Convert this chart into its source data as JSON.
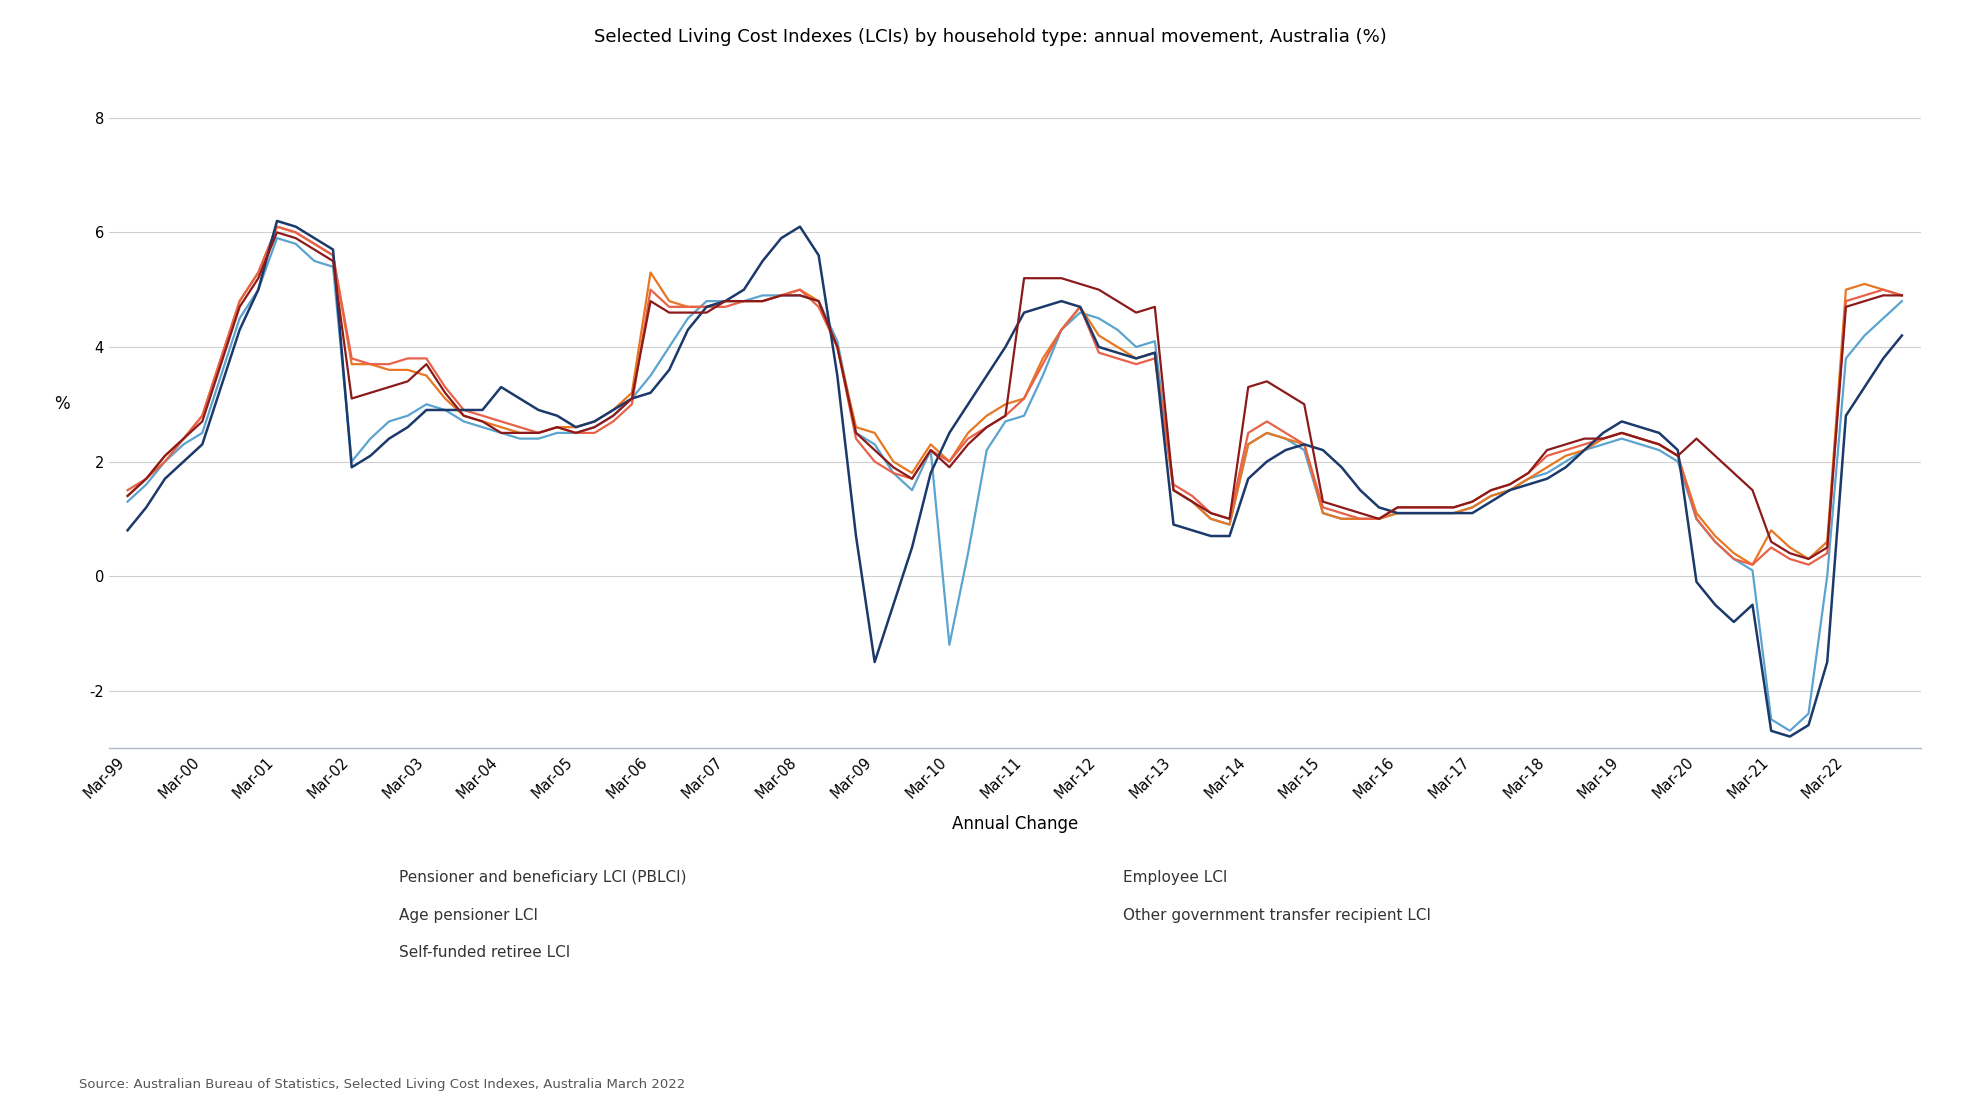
{
  "title": "Selected Living Cost Indexes (LCIs) by household type: annual movement, Australia (%)",
  "xlabel": "Annual Change",
  "ylabel": "%",
  "source": "Source: Australian Bureau of Statistics, Selected Living Cost Indexes, Australia March 2022",
  "ylim": [
    -3,
    9
  ],
  "yticks": [
    -2,
    0,
    2,
    4,
    6,
    8
  ],
  "x_labels": [
    "Mar-99",
    "Mar-00",
    "Mar-01",
    "Mar-02",
    "Mar-03",
    "Mar-04",
    "Mar-05",
    "Mar-06",
    "Mar-07",
    "Mar-08",
    "Mar-09",
    "Mar-10",
    "Mar-11",
    "Mar-12",
    "Mar-13",
    "Mar-14",
    "Mar-15",
    "Mar-16",
    "Mar-17",
    "Mar-18",
    "Mar-19",
    "Mar-20",
    "Mar-21",
    "Mar-22"
  ],
  "x_tick_indices": [
    0,
    4,
    8,
    12,
    16,
    20,
    24,
    28,
    32,
    36,
    40,
    44,
    48,
    52,
    56,
    60,
    64,
    68,
    72,
    76,
    80,
    84,
    88,
    92
  ],
  "series": [
    {
      "name": "Pensioner and beneficiary LCI (PBLCI)",
      "color": "#5BA4CF",
      "linewidth": 1.6,
      "values": [
        1.3,
        1.6,
        2.0,
        2.3,
        2.5,
        3.5,
        4.5,
        5.0,
        5.9,
        5.8,
        5.5,
        5.4,
        2.0,
        2.4,
        2.7,
        2.8,
        3.0,
        2.9,
        2.7,
        2.6,
        2.5,
        2.4,
        2.4,
        2.5,
        2.5,
        2.6,
        2.8,
        3.1,
        3.5,
        4.0,
        4.5,
        4.8,
        4.8,
        4.8,
        4.9,
        4.9,
        4.9,
        4.8,
        4.1,
        2.5,
        2.3,
        1.8,
        1.5,
        2.2,
        -1.2,
        0.4,
        2.2,
        2.7,
        2.8,
        3.5,
        4.3,
        4.6,
        4.5,
        4.3,
        4.0,
        4.1,
        1.5,
        1.3,
        1.0,
        0.9,
        2.3,
        2.5,
        2.4,
        2.2,
        1.1,
        1.0,
        1.0,
        1.0,
        1.1,
        1.1,
        1.1,
        1.1,
        1.2,
        1.4,
        1.5,
        1.7,
        1.8,
        2.0,
        2.2,
        2.3,
        2.4,
        2.3,
        2.2,
        2.0,
        1.0,
        0.6,
        0.3,
        0.1,
        -2.5,
        -2.7,
        -2.4,
        0.0,
        3.8,
        4.2,
        4.5,
        4.8
      ]
    },
    {
      "name": "Age pensioner LCI",
      "color": "#E87722",
      "linewidth": 1.6,
      "values": [
        1.4,
        1.7,
        2.1,
        2.4,
        2.8,
        3.8,
        4.8,
        5.3,
        6.1,
        6.0,
        5.8,
        5.6,
        3.7,
        3.7,
        3.6,
        3.6,
        3.5,
        3.1,
        2.8,
        2.7,
        2.6,
        2.5,
        2.5,
        2.6,
        2.6,
        2.7,
        2.9,
        3.2,
        5.3,
        4.8,
        4.7,
        4.7,
        4.8,
        4.8,
        4.8,
        4.9,
        5.0,
        4.8,
        4.0,
        2.6,
        2.5,
        2.0,
        1.8,
        2.3,
        2.0,
        2.5,
        2.8,
        3.0,
        3.1,
        3.8,
        4.3,
        4.7,
        4.2,
        4.0,
        3.8,
        3.9,
        1.5,
        1.3,
        1.0,
        0.9,
        2.3,
        2.5,
        2.4,
        2.3,
        1.1,
        1.0,
        1.0,
        1.0,
        1.1,
        1.1,
        1.1,
        1.1,
        1.2,
        1.4,
        1.5,
        1.7,
        1.9,
        2.1,
        2.2,
        2.4,
        2.5,
        2.4,
        2.3,
        2.1,
        1.1,
        0.7,
        0.4,
        0.2,
        0.8,
        0.5,
        0.3,
        0.6,
        5.0,
        5.1,
        5.0,
        4.9
      ]
    },
    {
      "name": "Self-funded retiree LCI",
      "color": "#E8624A",
      "linewidth": 1.6,
      "values": [
        1.5,
        1.7,
        2.0,
        2.4,
        2.8,
        3.8,
        4.8,
        5.3,
        6.1,
        6.0,
        5.8,
        5.6,
        3.8,
        3.7,
        3.7,
        3.8,
        3.8,
        3.3,
        2.9,
        2.8,
        2.7,
        2.6,
        2.5,
        2.6,
        2.5,
        2.5,
        2.7,
        3.0,
        5.0,
        4.7,
        4.7,
        4.7,
        4.7,
        4.8,
        4.8,
        4.9,
        5.0,
        4.7,
        4.0,
        2.4,
        2.0,
        1.8,
        1.7,
        2.2,
        2.0,
        2.4,
        2.6,
        2.8,
        3.1,
        3.7,
        4.3,
        4.7,
        3.9,
        3.8,
        3.7,
        3.8,
        1.6,
        1.4,
        1.1,
        1.0,
        2.5,
        2.7,
        2.5,
        2.3,
        1.2,
        1.1,
        1.0,
        1.0,
        1.2,
        1.2,
        1.2,
        1.2,
        1.3,
        1.5,
        1.6,
        1.8,
        2.1,
        2.2,
        2.3,
        2.4,
        2.5,
        2.4,
        2.3,
        2.1,
        1.0,
        0.6,
        0.3,
        0.2,
        0.5,
        0.3,
        0.2,
        0.4,
        4.8,
        4.9,
        5.0,
        4.9
      ]
    },
    {
      "name": "Employee LCI",
      "color": "#1B3A6B",
      "linewidth": 1.8,
      "values": [
        0.8,
        1.2,
        1.7,
        2.0,
        2.3,
        3.3,
        4.3,
        5.0,
        6.2,
        6.1,
        5.9,
        5.7,
        1.9,
        2.1,
        2.4,
        2.6,
        2.9,
        2.9,
        2.9,
        2.9,
        3.3,
        3.1,
        2.9,
        2.8,
        2.6,
        2.7,
        2.9,
        3.1,
        3.2,
        3.6,
        4.3,
        4.7,
        4.8,
        5.0,
        5.5,
        5.9,
        6.1,
        5.6,
        3.5,
        0.7,
        -1.5,
        -0.5,
        0.5,
        1.8,
        2.5,
        3.0,
        3.5,
        4.0,
        4.6,
        4.7,
        4.8,
        4.7,
        4.0,
        3.9,
        3.8,
        3.9,
        0.9,
        0.8,
        0.7,
        0.7,
        1.7,
        2.0,
        2.2,
        2.3,
        2.2,
        1.9,
        1.5,
        1.2,
        1.1,
        1.1,
        1.1,
        1.1,
        1.1,
        1.3,
        1.5,
        1.6,
        1.7,
        1.9,
        2.2,
        2.5,
        2.7,
        2.6,
        2.5,
        2.2,
        -0.1,
        -0.5,
        -0.8,
        -0.5,
        -2.7,
        -2.8,
        -2.6,
        -1.5,
        2.8,
        3.3,
        3.8,
        4.2
      ]
    },
    {
      "name": "Other government transfer recipient LCI",
      "color": "#8B1A1A",
      "linewidth": 1.6,
      "values": [
        1.4,
        1.7,
        2.1,
        2.4,
        2.7,
        3.7,
        4.7,
        5.2,
        6.0,
        5.9,
        5.7,
        5.5,
        3.1,
        3.2,
        3.3,
        3.4,
        3.7,
        3.2,
        2.8,
        2.7,
        2.5,
        2.5,
        2.5,
        2.6,
        2.5,
        2.6,
        2.8,
        3.1,
        4.8,
        4.6,
        4.6,
        4.6,
        4.8,
        4.8,
        4.8,
        4.9,
        4.9,
        4.8,
        4.0,
        2.5,
        2.2,
        1.9,
        1.7,
        2.2,
        1.9,
        2.3,
        2.6,
        2.8,
        5.2,
        5.2,
        5.2,
        5.1,
        5.0,
        4.8,
        4.6,
        4.7,
        1.5,
        1.3,
        1.1,
        1.0,
        3.3,
        3.4,
        3.2,
        3.0,
        1.3,
        1.2,
        1.1,
        1.0,
        1.2,
        1.2,
        1.2,
        1.2,
        1.3,
        1.5,
        1.6,
        1.8,
        2.2,
        2.3,
        2.4,
        2.4,
        2.5,
        2.4,
        2.3,
        2.1,
        2.4,
        2.1,
        1.8,
        1.5,
        0.6,
        0.4,
        0.3,
        0.5,
        4.7,
        4.8,
        4.9,
        4.9
      ]
    }
  ],
  "legend_layout": [
    {
      "name": "Pensioner and beneficiary LCI (PBLCI)",
      "color": "#5BA4CF",
      "row": 0,
      "col": 0
    },
    {
      "name": "Employee LCI",
      "color": "#1B3A6B",
      "row": 0,
      "col": 1
    },
    {
      "name": "Age pensioner LCI",
      "color": "#E87722",
      "row": 1,
      "col": 0
    },
    {
      "name": "Other government transfer recipient LCI",
      "color": "#8B1A1A",
      "row": 1,
      "col": 1
    },
    {
      "name": "Self-funded retiree LCI",
      "color": "#E8624A",
      "row": 2,
      "col": 0
    }
  ],
  "bg_color": "#FFFFFF",
  "grid_color": "#D0D0D0",
  "spine_color": "#B0B8C8",
  "title_fontsize": 13,
  "tick_fontsize": 10.5,
  "label_fontsize": 12,
  "source_fontsize": 9.5,
  "legend_fontsize": 11
}
